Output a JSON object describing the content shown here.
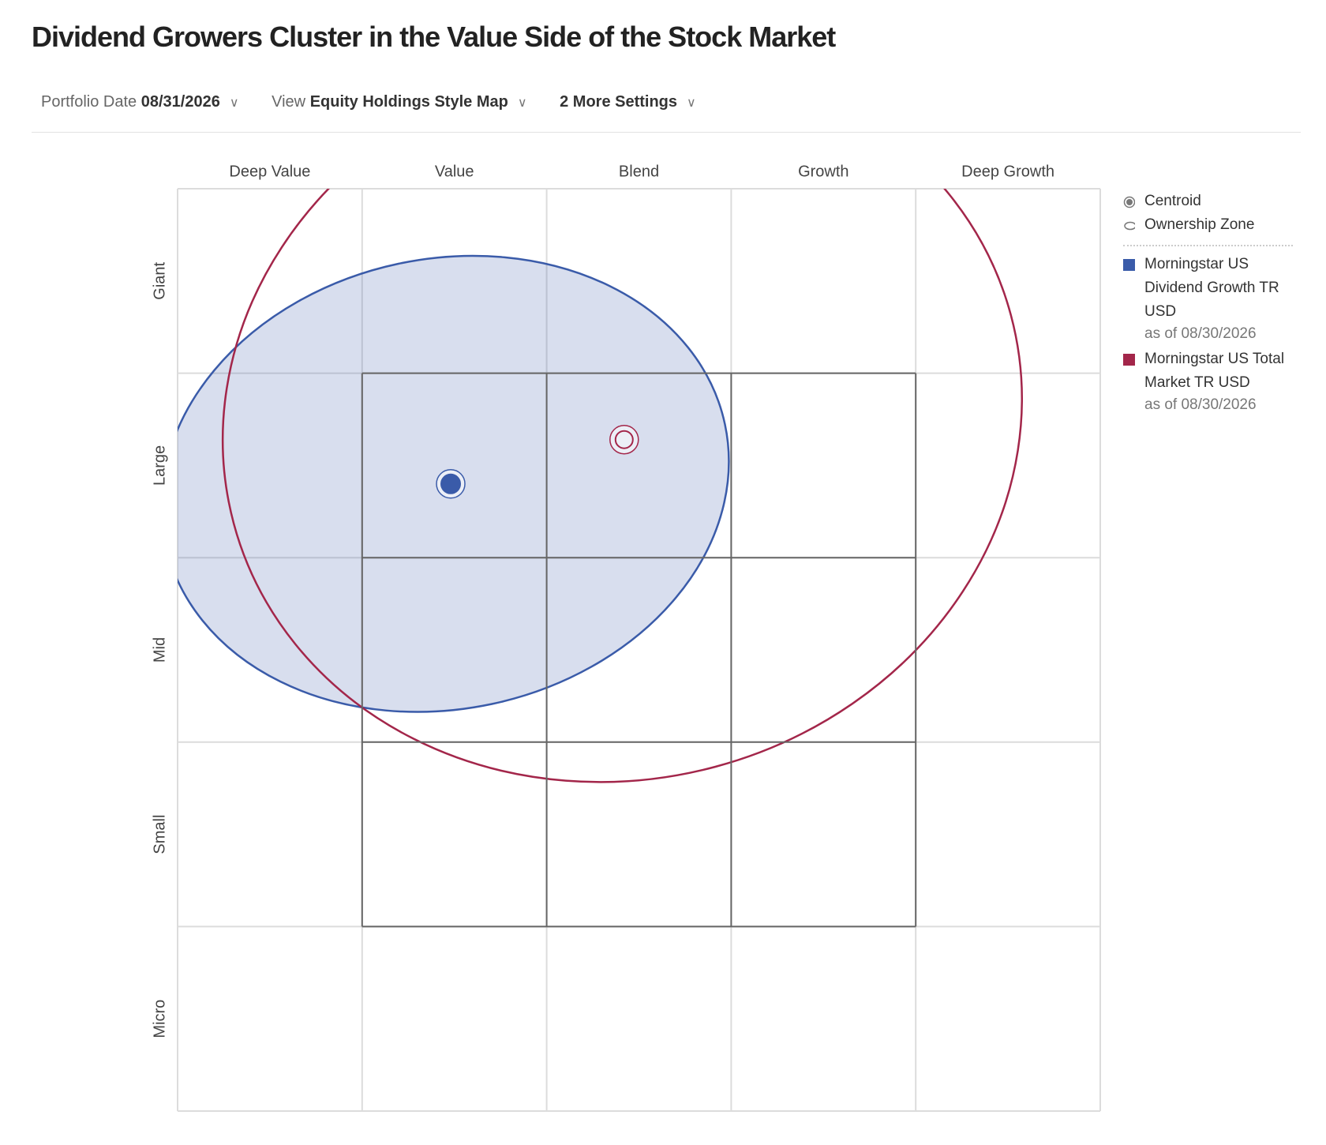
{
  "controls": {
    "date_label": "Portfolio Date",
    "date_value": "08/31/2026",
    "view_label": "View",
    "view_value": "Equity Holdings Style Map",
    "more": "2 More Settings"
  },
  "chart_data": {
    "type": "style-map",
    "title": "Dividend Growers Cluster in the Value Side of the Stock Market",
    "x_categories": [
      "Deep Value",
      "Value",
      "Blend",
      "Growth",
      "Deep Growth"
    ],
    "y_categories": [
      "Giant",
      "Large",
      "Mid",
      "Small",
      "Micro"
    ],
    "xlim": [
      0,
      5
    ],
    "ylim": [
      5,
      0
    ],
    "legend_items": [
      "Centroid",
      "Ownership Zone"
    ],
    "series": [
      {
        "name": "Morningstar US Dividend Growth TR USD",
        "date": "as of 08/30/2026",
        "color": "#3a5ba9",
        "centroid": {
          "x": 1.48,
          "y": 1.6
        },
        "zone": {
          "cx": 1.45,
          "cy": 1.6,
          "rx": 1.55,
          "ry": 1.22,
          "angle": -12
        }
      },
      {
        "name": "Morningstar US Total Market TR USD",
        "date": "as of 08/30/2026",
        "color": "#a3264a",
        "centroid": {
          "x": 2.42,
          "y": 1.36
        },
        "zone": {
          "cx": 2.41,
          "cy": 1.25,
          "rx": 2.18,
          "ry": 1.95,
          "angle": -15
        }
      }
    ]
  }
}
